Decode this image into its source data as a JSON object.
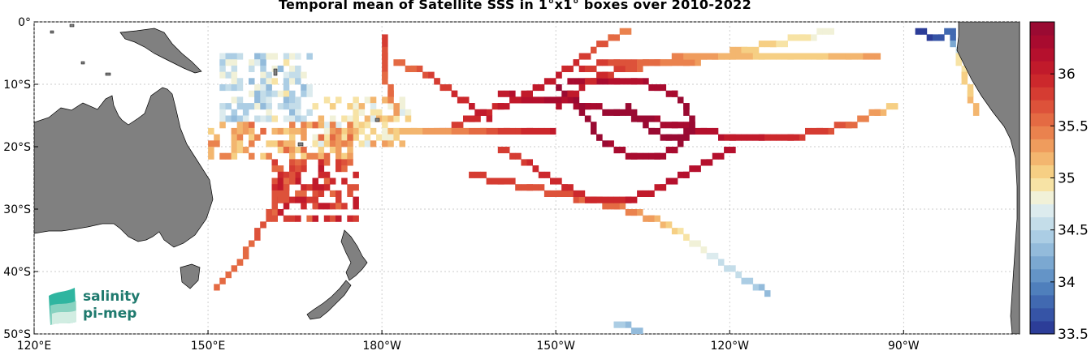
{
  "title": "Temporal mean of Satellite SSS in 1°x1° boxes over 2010-2022",
  "map": {
    "projection": "equirectangular",
    "lon_range": [
      120,
      290
    ],
    "lat_range": [
      -50,
      0
    ],
    "land_color": "#808080",
    "ocean_color": "#ffffff",
    "grid": true,
    "x_ticks": [
      {
        "lon": 120,
        "label": "120°E"
      },
      {
        "lon": 150,
        "label": "150°E"
      },
      {
        "lon": 180,
        "label": "180°W"
      },
      {
        "lon": 210,
        "label": "150°W"
      },
      {
        "lon": 240,
        "label": "120°W"
      },
      {
        "lon": 270,
        "label": "90°W"
      }
    ],
    "y_ticks": [
      {
        "lat": 0,
        "label": "0°"
      },
      {
        "lat": -10,
        "label": "10°S"
      },
      {
        "lat": -20,
        "label": "20°S"
      },
      {
        "lat": -30,
        "label": "30°S"
      },
      {
        "lat": -40,
        "label": "40°S"
      },
      {
        "lat": -50,
        "label": "50°S"
      }
    ]
  },
  "colorbar": {
    "min": 33.5,
    "max": 36.5,
    "step": 0.125,
    "colors": [
      "#2c3d98",
      "#3654a6",
      "#4169b1",
      "#4f7fbc",
      "#6494c7",
      "#7ba8d1",
      "#93bbdb",
      "#abcde4",
      "#c4dde9",
      "#dcebee",
      "#f1f1d8",
      "#f7e3a5",
      "#f6cf84",
      "#f3b66f",
      "#ef9c5d",
      "#ea824e",
      "#e46a43",
      "#dd523a",
      "#d53c32",
      "#cc282c",
      "#c11a2b",
      "#b5102d",
      "#a80b2f",
      "#9a0a32"
    ],
    "ticks": [
      {
        "value": 33.5,
        "label": "33.5"
      },
      {
        "value": 34,
        "label": "34"
      },
      {
        "value": 34.5,
        "label": "34.5"
      },
      {
        "value": 35,
        "label": "35"
      },
      {
        "value": 35.5,
        "label": "35.5"
      },
      {
        "value": 36,
        "label": "36"
      }
    ]
  },
  "logo": {
    "line1": "salinity",
    "line2": "pi-mep",
    "color": "#1f7a6e",
    "accent": "#2fb5a0"
  },
  "tracks": [
    {
      "region": "central-hub",
      "pts": [
        [
          -160,
          -11
        ],
        [
          -155,
          -12
        ],
        [
          -150,
          -12
        ],
        [
          -145,
          -13
        ],
        [
          -140,
          -14
        ],
        [
          -135,
          -15
        ],
        [
          -130,
          -16
        ],
        [
          -125,
          -17
        ],
        [
          -120,
          -18
        ],
        [
          -115,
          -18
        ],
        [
          -110,
          -18
        ],
        [
          -105,
          -17
        ],
        [
          -100,
          -16
        ],
        [
          -95,
          -14
        ],
        [
          -92,
          -13
        ]
      ],
      "sss": [
        36.1,
        36.2,
        36.3,
        36.35,
        36.4,
        36.4,
        36.3,
        36.2,
        36.1,
        36.0,
        35.9,
        35.8,
        35.6,
        35.3,
        35.0
      ]
    },
    {
      "region": "loop-a",
      "pts": [
        [
          -150,
          -10
        ],
        [
          -147,
          -12
        ],
        [
          -145,
          -15
        ],
        [
          -143,
          -18
        ],
        [
          -140,
          -20
        ],
        [
          -137,
          -21
        ],
        [
          -133,
          -21
        ],
        [
          -130,
          -20
        ],
        [
          -128,
          -18
        ],
        [
          -127,
          -16
        ],
        [
          -128,
          -13
        ],
        [
          -130,
          -11
        ],
        [
          -133,
          -10
        ],
        [
          -137,
          -9
        ],
        [
          -140,
          -9
        ],
        [
          -144,
          -9
        ],
        [
          -148,
          -9
        ]
      ],
      "sss": [
        36.4,
        36.4,
        36.45,
        36.4,
        36.35,
        36.3,
        36.3,
        36.35,
        36.4,
        36.4,
        36.4,
        36.35,
        36.3,
        36.2,
        36.2,
        36.3,
        36.35
      ]
    },
    {
      "region": "loop-b",
      "pts": [
        [
          -138,
          -13
        ],
        [
          -136,
          -15
        ],
        [
          -134,
          -17
        ],
        [
          -131,
          -18
        ],
        [
          -129,
          -18
        ],
        [
          -128,
          -17
        ]
      ],
      "sss": [
        36.4,
        36.45,
        36.5,
        36.45,
        36.4,
        36.4
      ]
    },
    {
      "region": "north-ne",
      "pts": [
        [
          -150,
          -13
        ],
        [
          -146,
          -10
        ],
        [
          -142,
          -8
        ],
        [
          -138,
          -7
        ],
        [
          -133,
          -6
        ],
        [
          -128,
          -6
        ],
        [
          -123,
          -5
        ],
        [
          -118,
          -4
        ],
        [
          -113,
          -3
        ],
        [
          -108,
          -2
        ],
        [
          -103,
          -1
        ]
      ],
      "sss": [
        36.2,
        36.0,
        35.9,
        35.7,
        35.5,
        35.4,
        35.3,
        35.1,
        35.0,
        34.9,
        34.8
      ]
    },
    {
      "region": "north-e",
      "pts": [
        [
          -146,
          -7
        ],
        [
          -140,
          -6
        ],
        [
          -135,
          -6
        ],
        [
          -130,
          -5.5
        ],
        [
          -125,
          -5
        ],
        [
          -120,
          -5
        ],
        [
          -115,
          -5
        ],
        [
          -110,
          -5
        ],
        [
          -105,
          -5
        ],
        [
          -100,
          -5
        ],
        [
          -95,
          -5
        ]
      ],
      "sss": [
        35.9,
        35.7,
        35.6,
        35.4,
        35.3,
        35.2,
        35.1,
        35.0,
        35.1,
        35.2,
        35.3
      ]
    },
    {
      "region": "sw-diag",
      "pts": [
        [
          -170,
          -17
        ],
        [
          -165,
          -15
        ],
        [
          -160,
          -13
        ],
        [
          -155,
          -11
        ],
        [
          -150,
          -8
        ],
        [
          -147,
          -6
        ],
        [
          -144,
          -4
        ],
        [
          -141,
          -2
        ],
        [
          -138,
          -1
        ]
      ],
      "sss": [
        35.8,
        35.9,
        36.0,
        36.1,
        36.0,
        35.9,
        35.7,
        35.6,
        35.4
      ]
    },
    {
      "region": "se-route",
      "pts": [
        [
          -165,
          -24
        ],
        [
          -160,
          -25
        ],
        [
          -155,
          -26
        ],
        [
          -150,
          -27
        ],
        [
          -145,
          -28
        ],
        [
          -140,
          -29
        ],
        [
          -137,
          -30
        ],
        [
          -134,
          -31
        ],
        [
          -131,
          -32
        ],
        [
          -128,
          -34
        ],
        [
          -125,
          -36
        ],
        [
          -122,
          -38
        ],
        [
          -119,
          -40
        ],
        [
          -116,
          -42
        ],
        [
          -114,
          -43
        ]
      ],
      "sss": [
        35.8,
        35.8,
        35.7,
        35.7,
        35.6,
        35.5,
        35.4,
        35.3,
        35.1,
        34.9,
        34.8,
        34.6,
        34.5,
        34.4,
        34.3
      ]
    },
    {
      "region": "se2",
      "pts": [
        [
          -160,
          -20
        ],
        [
          -154,
          -23
        ],
        [
          -149,
          -26
        ],
        [
          -144,
          -28
        ],
        [
          -138,
          -28
        ],
        [
          -132,
          -26
        ],
        [
          -128,
          -24
        ],
        [
          -124,
          -22
        ],
        [
          -120,
          -20
        ]
      ],
      "sss": [
        35.8,
        35.9,
        35.9,
        35.9,
        36.0,
        36.1,
        36.2,
        36.2,
        36.2
      ]
    },
    {
      "region": "west-band",
      "pts": [
        [
          -178,
          -17
        ],
        [
          -175,
          -17
        ],
        [
          -171,
          -17
        ],
        [
          -167,
          -17
        ],
        [
          -163,
          -17
        ],
        [
          -159,
          -17
        ],
        [
          -155,
          -17
        ],
        [
          -151,
          -17
        ]
      ],
      "sss": [
        35.1,
        35.2,
        35.3,
        35.4,
        35.6,
        35.8,
        35.9,
        36.0
      ]
    },
    {
      "region": "far-north-w",
      "pts": [
        [
          -178,
          -6
        ],
        [
          -175,
          -7
        ],
        [
          -171,
          -9
        ],
        [
          -168,
          -11
        ],
        [
          -165,
          -13
        ],
        [
          -162,
          -15
        ]
      ],
      "sss": [
        35.5,
        35.6,
        35.8,
        35.9,
        36.0,
        36.0
      ]
    },
    {
      "region": "vert-line",
      "pts": [
        [
          -180,
          -2
        ],
        [
          -180,
          -5
        ],
        [
          -180,
          -8
        ],
        [
          -179,
          -11
        ],
        [
          -178,
          -14
        ]
      ],
      "sss": [
        35.8,
        35.7,
        35.6,
        35.5,
        35.3
      ]
    },
    {
      "region": "tasman-sw",
      "pts": [
        [
          165,
          -22
        ],
        [
          163,
          -26
        ],
        [
          161,
          -29
        ],
        [
          159,
          -32
        ],
        [
          157,
          -35
        ],
        [
          155,
          -38
        ],
        [
          153,
          -40
        ],
        [
          151,
          -42
        ]
      ],
      "sss": [
        35.6,
        35.7,
        35.7,
        35.7,
        35.6,
        35.6,
        35.6,
        35.6
      ]
    },
    {
      "region": "south-pac",
      "pts": [
        [
          -140,
          -48
        ],
        [
          -136,
          -49
        ]
      ],
      "sss": [
        34.4,
        34.3
      ]
    },
    {
      "region": "peru-coast",
      "pts": [
        [
          -82,
          -2
        ],
        [
          -81,
          -5
        ],
        [
          -80,
          -8
        ],
        [
          -79,
          -11
        ],
        [
          -78,
          -14
        ]
      ],
      "sss": [
        33.8,
        34.9,
        35.0,
        35.1,
        35.2
      ]
    },
    {
      "region": "panama",
      "pts": [
        [
          -88,
          -1
        ],
        [
          -86,
          -2
        ],
        [
          -84,
          -2
        ],
        [
          -82,
          -1
        ]
      ],
      "sss": [
        33.6,
        33.6,
        33.7,
        33.8
      ]
    }
  ],
  "patches": [
    {
      "region": "coral-sea-blue",
      "lon": [
        152,
        168
      ],
      "lat": [
        -16,
        -5
      ],
      "sss": 34.6
    },
    {
      "region": "fiji-mix",
      "lon": [
        168,
        185
      ],
      "lat": [
        -20,
        -12
      ],
      "sss": 35.0
    },
    {
      "region": "tonga-tan",
      "lon": [
        150,
        175
      ],
      "lat": [
        -22,
        -16
      ],
      "sss": 35.3
    },
    {
      "region": "new-caledonia-red",
      "lon": [
        161,
        176
      ],
      "lat": [
        -32,
        -22
      ],
      "sss": 35.8
    }
  ]
}
